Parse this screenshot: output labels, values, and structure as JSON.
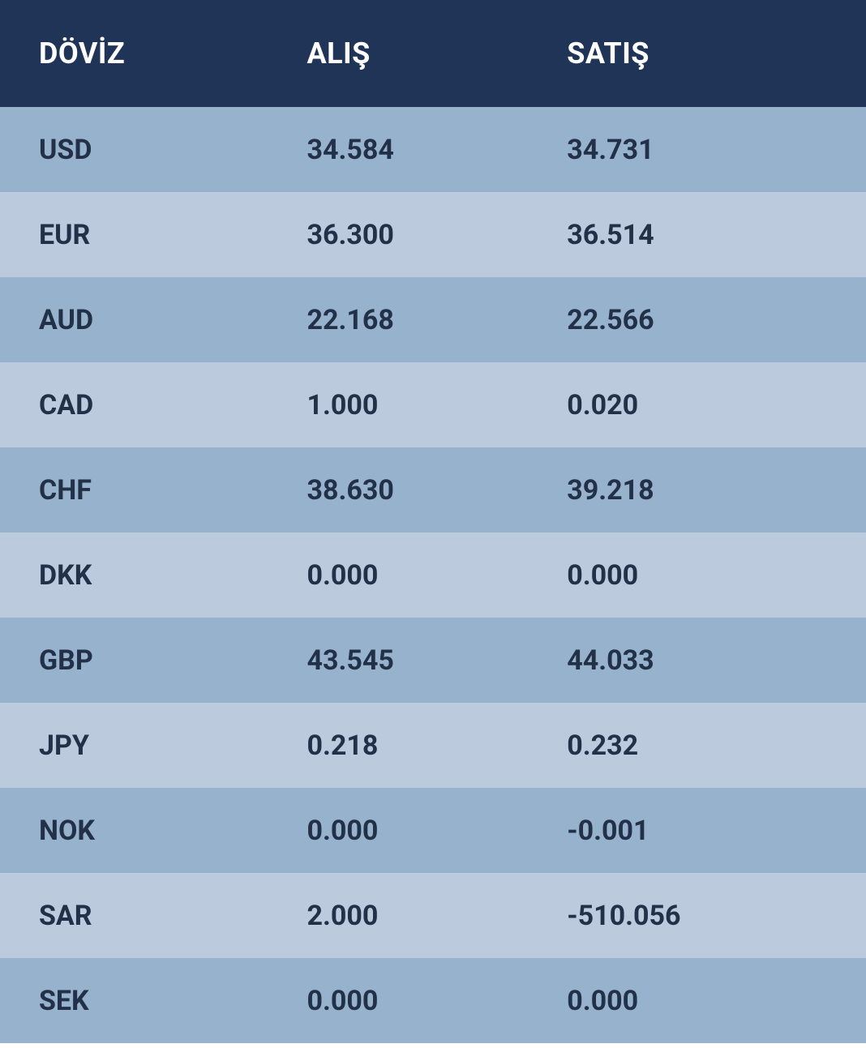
{
  "table": {
    "type": "table",
    "columns": [
      {
        "key": "currency",
        "label": "DÖVİZ"
      },
      {
        "key": "buy",
        "label": "ALIŞ"
      },
      {
        "key": "sell",
        "label": "SATIŞ"
      }
    ],
    "rows": [
      {
        "currency": "USD",
        "buy": "34.584",
        "sell": "34.731"
      },
      {
        "currency": "EUR",
        "buy": "36.300",
        "sell": "36.514"
      },
      {
        "currency": "AUD",
        "buy": "22.168",
        "sell": "22.566"
      },
      {
        "currency": "CAD",
        "buy": "1.000",
        "sell": "0.020"
      },
      {
        "currency": "CHF",
        "buy": "38.630",
        "sell": "39.218"
      },
      {
        "currency": "DKK",
        "buy": "0.000",
        "sell": "0.000"
      },
      {
        "currency": "GBP",
        "buy": "43.545",
        "sell": "44.033"
      },
      {
        "currency": "JPY",
        "buy": "0.218",
        "sell": "0.232"
      },
      {
        "currency": "NOK",
        "buy": "0.000",
        "sell": "-0.001"
      },
      {
        "currency": "SAR",
        "buy": "2.000",
        "sell": "-510.056"
      },
      {
        "currency": "SEK",
        "buy": "0.000",
        "sell": "0.000"
      }
    ],
    "styling": {
      "header_background_color": "#1f3456",
      "header_text_color": "#ffffff",
      "header_font_size": 36,
      "header_font_weight": 700,
      "row_odd_background_color": "#97b2cd",
      "row_even_background_color": "#bbcbdd",
      "cell_text_color": "#223048",
      "cell_font_size": 34,
      "cell_font_weight": 700,
      "header_row_height": 132,
      "data_row_height": 105,
      "column_widths_percent": [
        34,
        33,
        33
      ]
    }
  }
}
